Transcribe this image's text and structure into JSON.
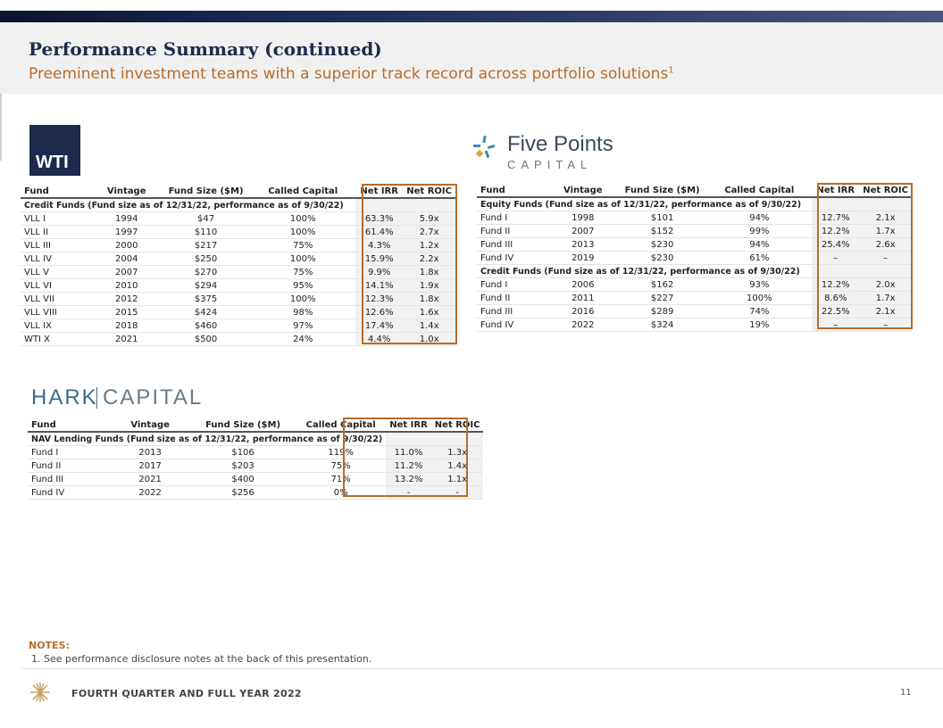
{
  "header": {
    "title": "Performance Summary (continued)",
    "subtitle": "Preeminent investment teams with a superior track record across portfolio solutions",
    "subtitle_sup": "1"
  },
  "logos": {
    "wti": "WTI",
    "five_points_name": "Five Points",
    "five_points_sub": "CAPITAL",
    "hark_a": "HARK",
    "hark_b": "CAPITAL"
  },
  "columns": [
    "Fund",
    "Vintage",
    "Fund Size ($M)",
    "Called Capital",
    "Net IRR",
    "Net ROIC"
  ],
  "wti_table": {
    "section": "Credit Funds (Fund size as of 12/31/22, performance as of 9/30/22)",
    "rows": [
      [
        "VLL I",
        "1994",
        "$47",
        "100%",
        "63.3%",
        "5.9x"
      ],
      [
        "VLL II",
        "1997",
        "$110",
        "100%",
        "61.4%",
        "2.7x"
      ],
      [
        "VLL III",
        "2000",
        "$217",
        "75%",
        "4.3%",
        "1.2x"
      ],
      [
        "VLL IV",
        "2004",
        "$250",
        "100%",
        "15.9%",
        "2.2x"
      ],
      [
        "VLL V",
        "2007",
        "$270",
        "75%",
        "9.9%",
        "1.8x"
      ],
      [
        "VLL VI",
        "2010",
        "$294",
        "95%",
        "14.1%",
        "1.9x"
      ],
      [
        "VLL VII",
        "2012",
        "$375",
        "100%",
        "12.3%",
        "1.8x"
      ],
      [
        "VLL VIII",
        "2015",
        "$424",
        "98%",
        "12.6%",
        "1.6x"
      ],
      [
        "VLL IX",
        "2018",
        "$460",
        "97%",
        "17.4%",
        "1.4x"
      ],
      [
        "WTI X",
        "2021",
        "$500",
        "24%",
        "4.4%",
        "1.0x"
      ]
    ]
  },
  "fp_table": {
    "equity_section": "Equity Funds (Fund size as of 12/31/22, performance as of 9/30/22)",
    "equity_rows": [
      [
        "Fund I",
        "1998",
        "$101",
        "94%",
        "12.7%",
        "2.1x"
      ],
      [
        "Fund II",
        "2007",
        "$152",
        "99%",
        "12.2%",
        "1.7x"
      ],
      [
        "Fund III",
        "2013",
        "$230",
        "94%",
        "25.4%",
        "2.6x"
      ],
      [
        "Fund IV",
        "2019",
        "$230",
        "61%",
        "–",
        "–"
      ]
    ],
    "credit_section": "Credit Funds (Fund size as of 12/31/22, performance as of 9/30/22)",
    "credit_rows": [
      [
        "Fund I",
        "2006",
        "$162",
        "93%",
        "12.2%",
        "2.0x"
      ],
      [
        "Fund II",
        "2011",
        "$227",
        "100%",
        "8.6%",
        "1.7x"
      ],
      [
        "Fund III",
        "2016",
        "$289",
        "74%",
        "22.5%",
        "2.1x"
      ],
      [
        "Fund IV",
        "2022",
        "$324",
        "19%",
        "–",
        "–"
      ]
    ]
  },
  "hark_table": {
    "section": "NAV Lending Funds (Fund size as of 12/31/22, performance as of 9/30/22)",
    "rows": [
      [
        "Fund I",
        "2013",
        "$106",
        "119%",
        "11.0%",
        "1.3x"
      ],
      [
        "Fund II",
        "2017",
        "$203",
        "75%",
        "11.2%",
        "1.4x"
      ],
      [
        "Fund III",
        "2021",
        "$400",
        "71%",
        "13.2%",
        "1.1x"
      ],
      [
        "Fund IV",
        "2022",
        "$256",
        "0%",
        "-",
        "-"
      ]
    ]
  },
  "notes": {
    "heading": "NOTES:",
    "items": [
      "1. See performance disclosure notes at the back of this presentation."
    ]
  },
  "footer": {
    "text": "FOURTH QUARTER AND FULL YEAR 2022",
    "page": "11"
  },
  "colors": {
    "accent": "#b86b2b",
    "navy": "#1f2b4d"
  }
}
